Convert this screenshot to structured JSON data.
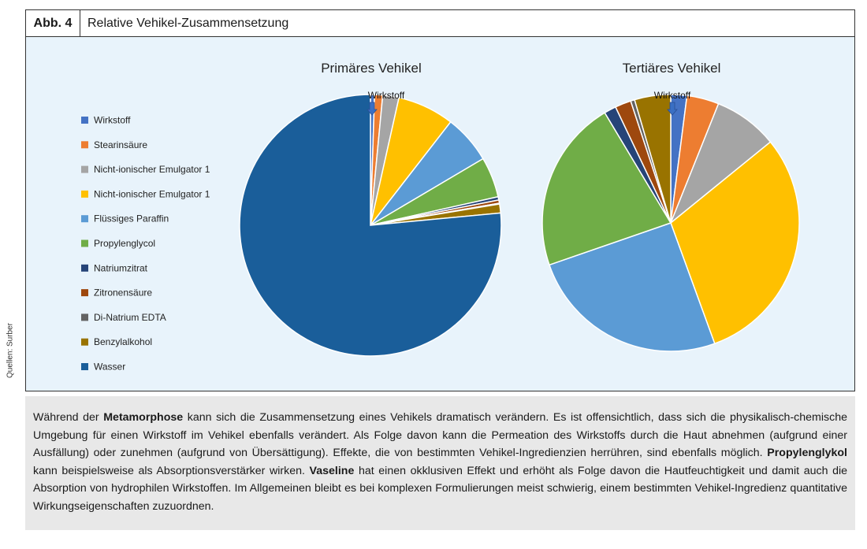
{
  "figure": {
    "label": "Abb. 4",
    "title": "Relative Vehikel-Zusammensetzung"
  },
  "source_credit": "Quellen: Surber",
  "chart_data": [
    {
      "type": "pie",
      "title": "Primäres Vehikel",
      "annotation": "Wirkstoff",
      "categories": [
        "Wirkstoff",
        "Stearinsäure",
        "Nicht-ionischer Emulgator 1",
        "Nicht-ionischer Emulgator 1",
        "Flüssiges Paraffin",
        "Propylenglycol",
        "Natriumzitrat",
        "Zitronensäure",
        "Di-Natrium EDTA",
        "Benzylalkohol",
        "Wasser"
      ],
      "values": [
        0.5,
        1.0,
        2.0,
        7.0,
        6.0,
        5.0,
        0.4,
        0.4,
        0.1,
        1.1,
        76.5
      ],
      "colors": [
        "#4472c4",
        "#ed7d31",
        "#a5a5a5",
        "#ffc000",
        "#5b9bd5",
        "#70ad47",
        "#264478",
        "#9e480e",
        "#636363",
        "#997300",
        "#1a5e9a"
      ]
    },
    {
      "type": "pie",
      "title": "Tertiäres Vehikel",
      "annotation": "Wirkstoff",
      "categories": [
        "Wirkstoff",
        "Stearinsäure",
        "Nicht-ionischer Emulgator 1",
        "Nicht-ionischer Emulgator 1",
        "Flüssiges Paraffin",
        "Propylenglycol",
        "Natriumzitrat",
        "Zitronensäure",
        "Di-Natrium EDTA",
        "Benzylalkohol",
        "Wasser"
      ],
      "values": [
        2.0,
        4.0,
        8.0,
        30.0,
        25.0,
        21.5,
        1.5,
        2.0,
        0.5,
        4.5,
        0
      ],
      "colors": [
        "#4472c4",
        "#ed7d31",
        "#a5a5a5",
        "#ffc000",
        "#5b9bd5",
        "#70ad47",
        "#264478",
        "#9e480e",
        "#636363",
        "#997300",
        "#1a5e9a"
      ]
    }
  ],
  "legend": {
    "placement": "left",
    "items": [
      {
        "label": "Wirkstoff",
        "color": "#4472c4"
      },
      {
        "label": "Stearinsäure",
        "color": "#ed7d31"
      },
      {
        "label": "Nicht-ionischer Emulgator 1",
        "color": "#a5a5a5"
      },
      {
        "label": "Nicht-ionischer Emulgator 1",
        "color": "#ffc000"
      },
      {
        "label": "Flüssiges Paraffin",
        "color": "#5b9bd5"
      },
      {
        "label": "Propylenglycol",
        "color": "#70ad47"
      },
      {
        "label": "Natriumzitrat",
        "color": "#264478"
      },
      {
        "label": "Zitronensäure",
        "color": "#9e480e"
      },
      {
        "label": "Di-Natrium EDTA",
        "color": "#636363"
      },
      {
        "label": "Benzylalkohol",
        "color": "#997300"
      },
      {
        "label": "Wasser",
        "color": "#1a5e9a"
      }
    ]
  },
  "caption": {
    "p1": "Während der ",
    "b1": "Metamorphose",
    "p2": " kann sich die Zusammensetzung eines Vehikels dramatisch verändern. Es ist offensichtlich, dass sich die physikalisch-chemische Umgebung für einen Wirkstoff im Vehikel ebenfalls verändert. Als Folge davon kann die Permeation des Wirkstoffs durch die Haut abnehmen (aufgrund einer Ausfällung) oder zunehmen (aufgrund von Übersättigung). Effekte, die von bestimmten Vehikel-Ingredienzien herrühren, sind ebenfalls möglich. ",
    "b2": "Propylenglykol",
    "p3": " kann beispielsweise als Absorptionsverstärker wirken. ",
    "b3": "Vaseline",
    "p4": " hat einen okklusiven Effekt und erhöht als Folge davon die Hautfeuchtigkeit und damit auch die Absorption von hydrophilen Wirkstoffen. Im Allgemeinen bleibt es bei komplexen Formulierungen meist schwierig, einem bestimmten Vehikel-Ingredienz quantitative Wirkungseigenschaften zuzuordnen."
  }
}
